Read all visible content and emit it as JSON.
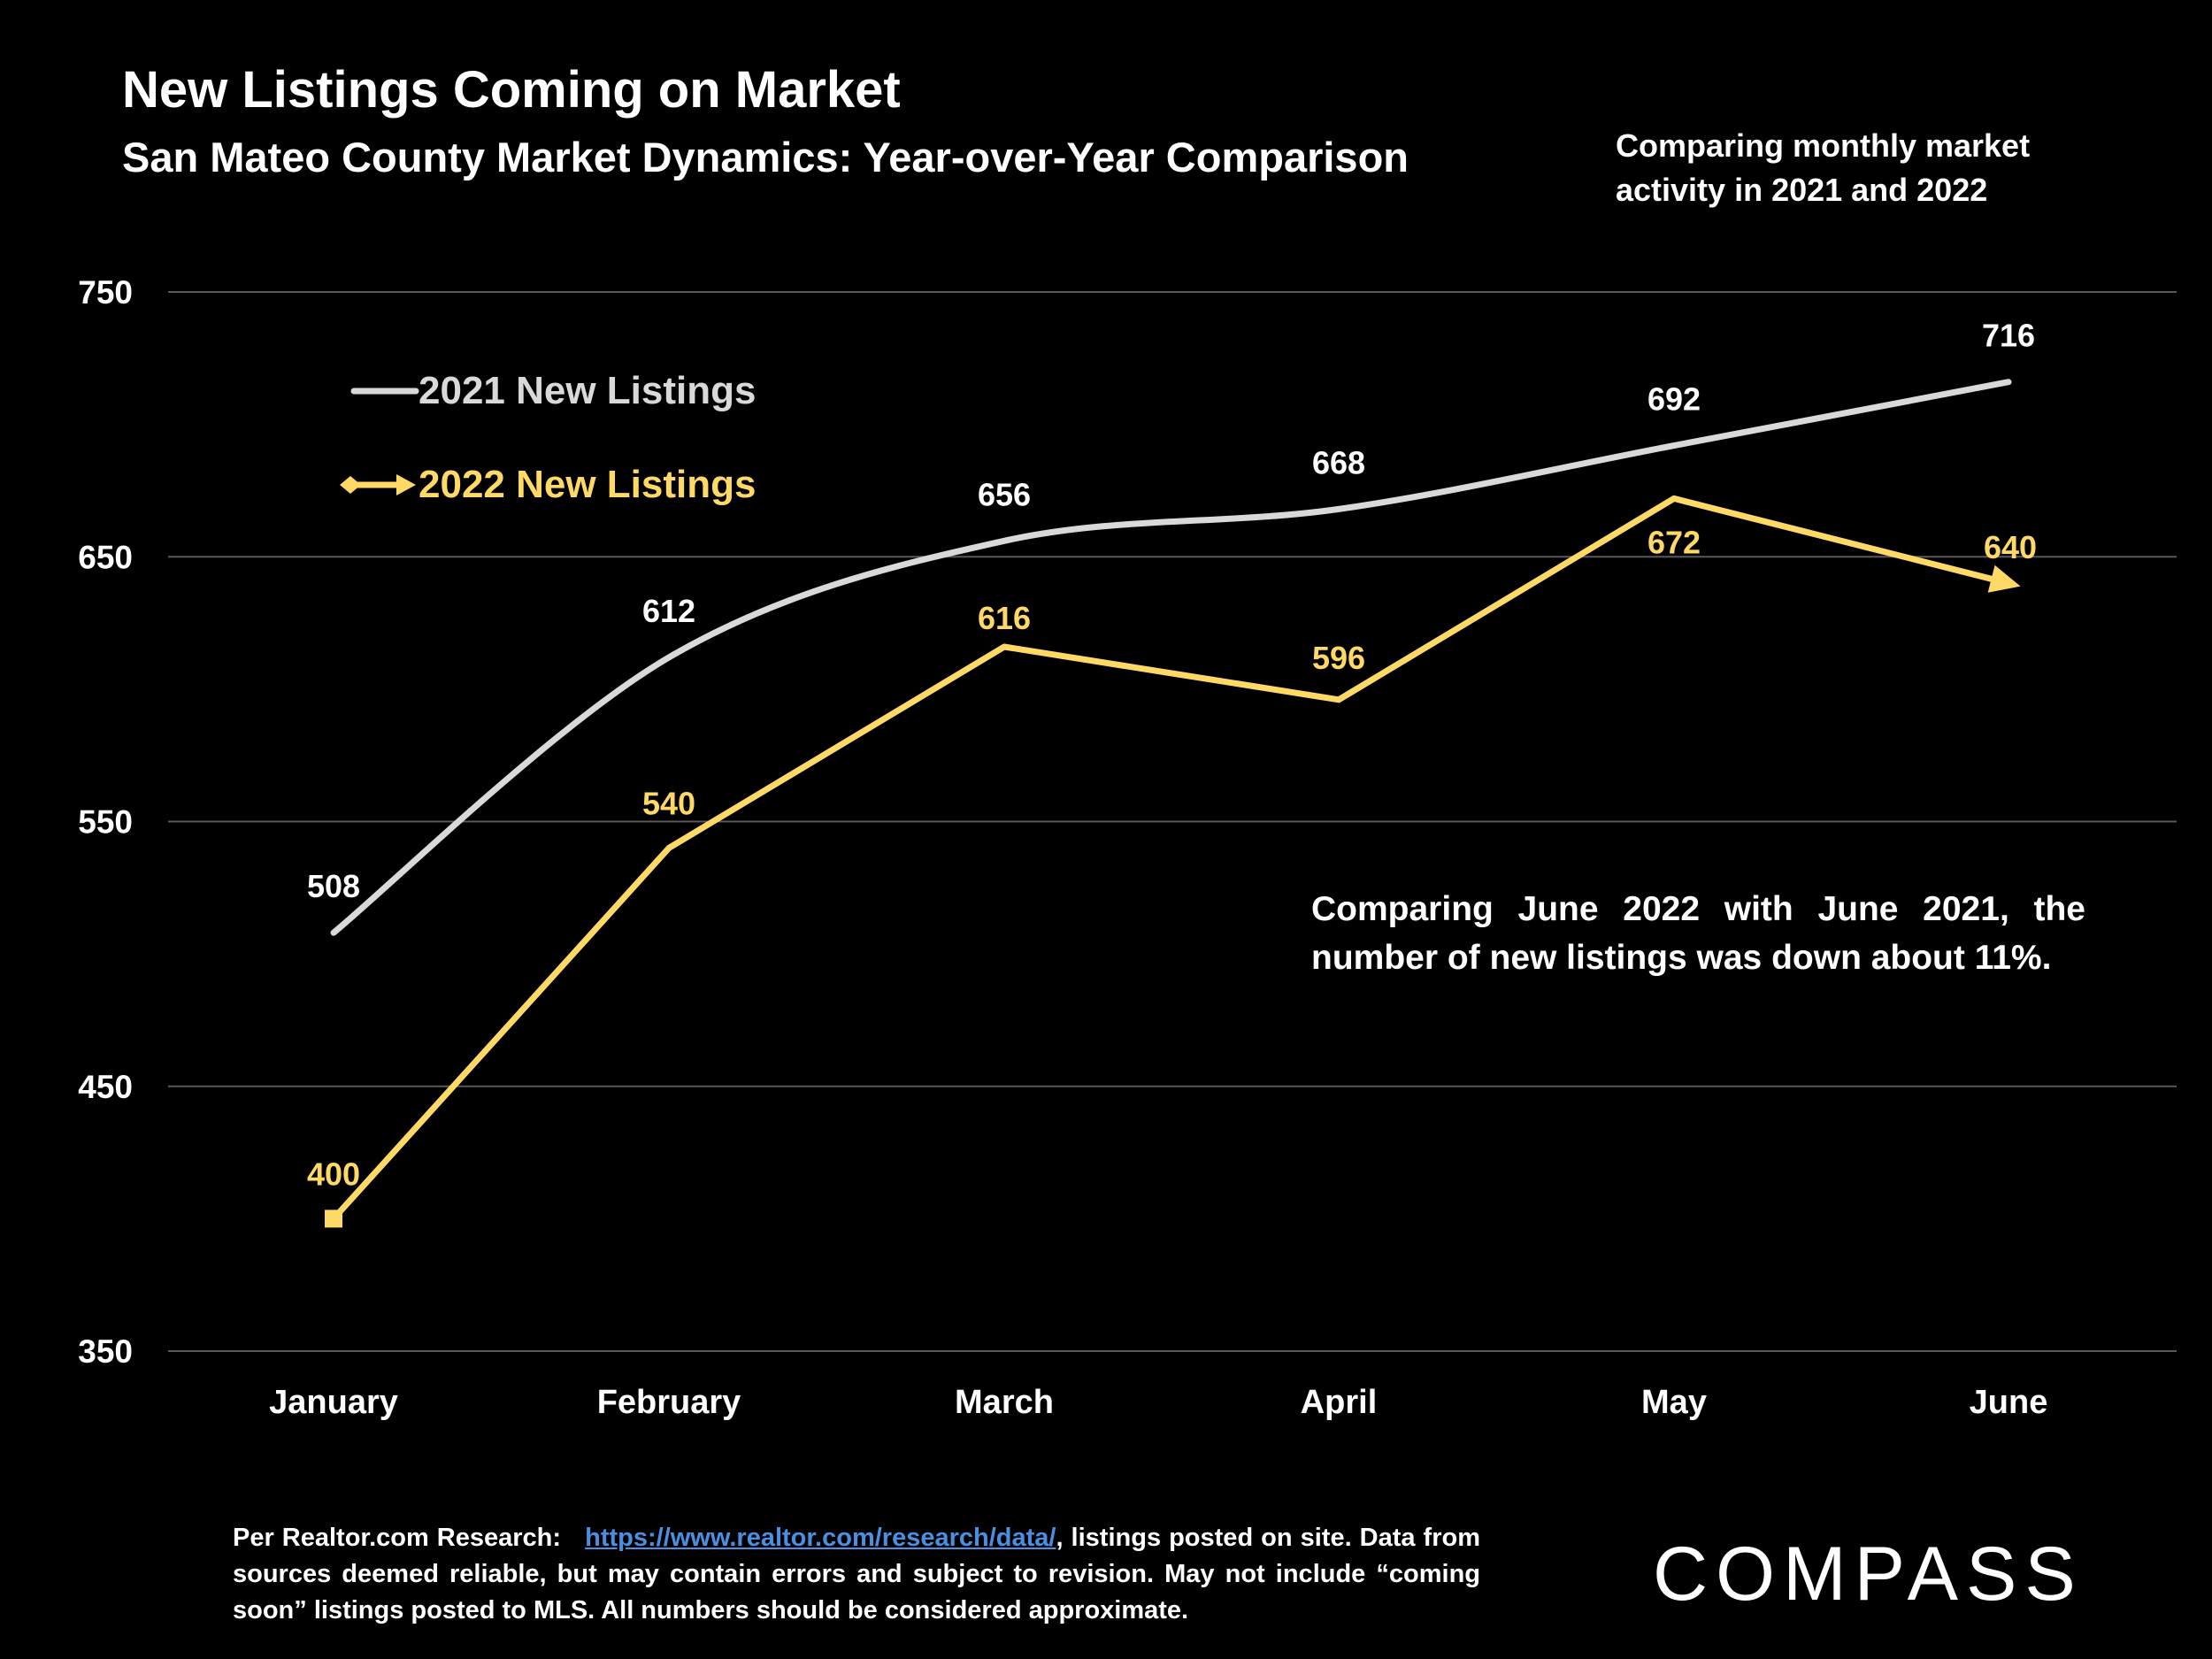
{
  "page": {
    "title": "New Listings Coming on Market",
    "subtitle": "San Mateo County Market Dynamics: Year-over-Year Comparison",
    "note_top": "Comparing monthly market activity in 2021 and 2022",
    "callout": "Comparing June 2022 with June 2021, the number of new listings was down about 11%.",
    "footer_prefix": "Per Realtor.com Research:",
    "footer_link": "https://www.realtor.com/research/data/",
    "footer_suffix": ", listings posted on site. Data from sources deemed reliable, but may contain errors and subject to revision. May not include “coming soon” listings posted to MLS. All numbers should be considered approximate.",
    "logo": "COMPASS"
  },
  "colors": {
    "background": "#000000",
    "series_2021": "#d9d9d9",
    "series_2022": "#ffd966",
    "grid": "#595959",
    "link": "#4a90e2"
  },
  "chart_data": {
    "type": "line",
    "title": "New Listings Coming on Market",
    "subtitle": "San Mateo County Market Dynamics: Year-over-Year Comparison",
    "categories": [
      "January",
      "February",
      "March",
      "April",
      "May",
      "June"
    ],
    "ylim": [
      350,
      750
    ],
    "yticks": [
      350,
      450,
      550,
      650,
      750
    ],
    "grid": true,
    "legend_position": "top-left",
    "series": [
      {
        "name": "2021 New Listings",
        "values": [
          508,
          612,
          656,
          668,
          692,
          716
        ],
        "smooth": true,
        "color": "#d9d9d9"
      },
      {
        "name": "2022 New Listings",
        "values": [
          400,
          540,
          616,
          596,
          672,
          640
        ],
        "smooth": false,
        "color": "#ffd966"
      }
    ]
  }
}
